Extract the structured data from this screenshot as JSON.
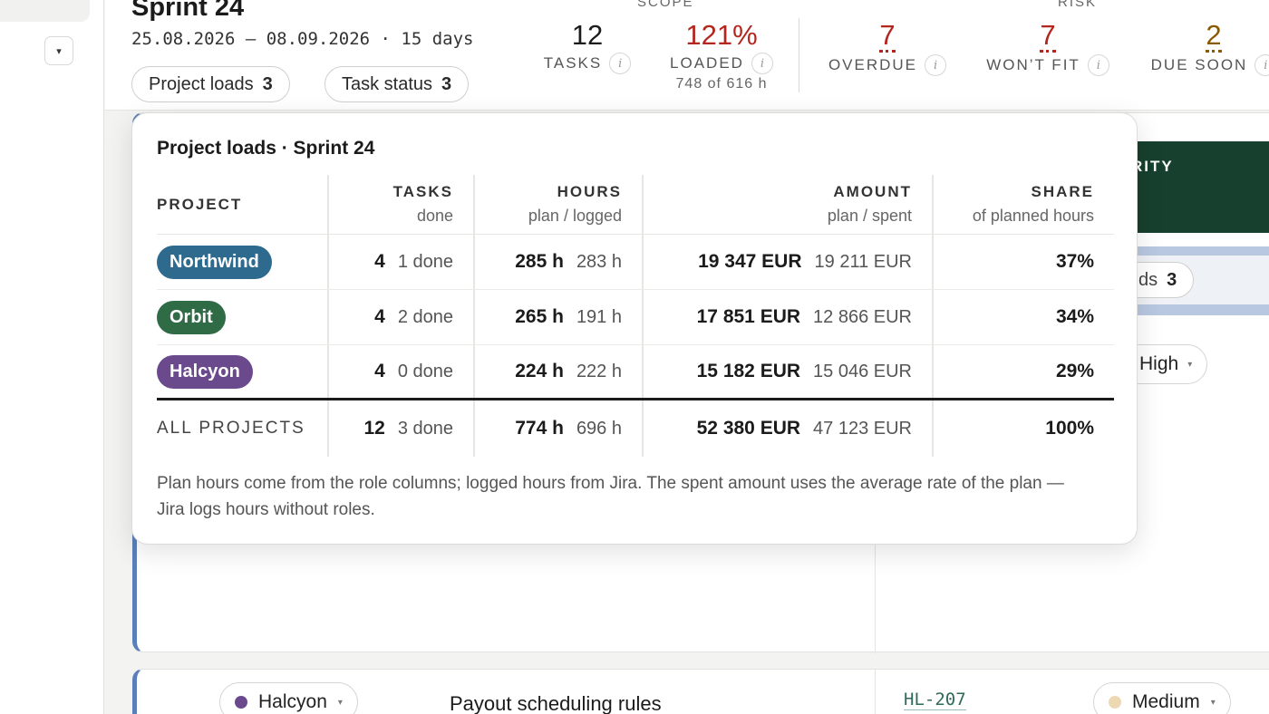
{
  "header": {
    "title": "Sprint 24",
    "dates": "25.08.2026 — 08.09.2026 · 15 days",
    "chips": [
      {
        "label": "Project loads",
        "count": "3"
      },
      {
        "label": "Task status",
        "count": "3"
      }
    ],
    "scope_label": "SCOPE",
    "risk_label": "RISK",
    "stats": {
      "tasks": {
        "value": "12",
        "label": "TASKS"
      },
      "loaded": {
        "value": "121%",
        "label": "LOADED",
        "sub": "748 of 616 h"
      },
      "overdue": {
        "value": "7",
        "label": "OVERDUE"
      },
      "wont_fit": {
        "value": "7",
        "label": "WON’T FIT"
      },
      "due_soon": {
        "value": "2",
        "label": "DUE SOON"
      }
    },
    "info_glyph": "i"
  },
  "colors": {
    "risk_red": "#b3261e",
    "due_soon": "#8a5a00",
    "northwind": "#2d6a8e",
    "orbit": "#2f6b45",
    "halcyon": "#6a4a8c",
    "priority_header": "#17402e",
    "medium_dot": "#ecd9b4"
  },
  "popover": {
    "title": "Project loads · Sprint 24",
    "columns": {
      "project": "PROJECT",
      "tasks": "TASKS",
      "tasks_sub": "done",
      "hours": "HOURS",
      "hours_sub": "plan / logged",
      "amount": "AMOUNT",
      "amount_sub": "plan / spent",
      "share": "SHARE",
      "share_sub": "of planned hours"
    },
    "rows": [
      {
        "project": "Northwind",
        "tasks": "4",
        "done": "1 done",
        "plan_h": "285 h",
        "logged_h": "283 h",
        "plan_amt": "19 347 EUR",
        "spent_amt": "19 211 EUR",
        "share": "37%"
      },
      {
        "project": "Orbit",
        "tasks": "4",
        "done": "2 done",
        "plan_h": "265 h",
        "logged_h": "191 h",
        "plan_amt": "17 851 EUR",
        "spent_amt": "12 866 EUR",
        "share": "34%"
      },
      {
        "project": "Halcyon",
        "tasks": "4",
        "done": "0 done",
        "plan_h": "224 h",
        "logged_h": "222 h",
        "plan_amt": "15 182 EUR",
        "spent_amt": "15 046 EUR",
        "share": "29%"
      }
    ],
    "total": {
      "label": "ALL PROJECTS",
      "tasks": "12",
      "done": "3 done",
      "plan_h": "774 h",
      "logged_h": "696 h",
      "plan_amt": "52 380 EUR",
      "spent_amt": "47 123 EUR",
      "share": "100%"
    },
    "note": "Plan hours come from the role columns; logged hours from Jira. The spent amount uses the average rate of the plan — Jira logs hours without roles."
  },
  "board": {
    "priority_header": "RITY",
    "peek_chip": {
      "label": "ds",
      "count": "3"
    },
    "priority_value": "High",
    "task": {
      "project": "Halcyon",
      "title": "Payout scheduling rules",
      "key": "HL-207",
      "priority": "Medium"
    },
    "caret": "▾"
  },
  "rail": {
    "toggle_glyph": "▾"
  }
}
